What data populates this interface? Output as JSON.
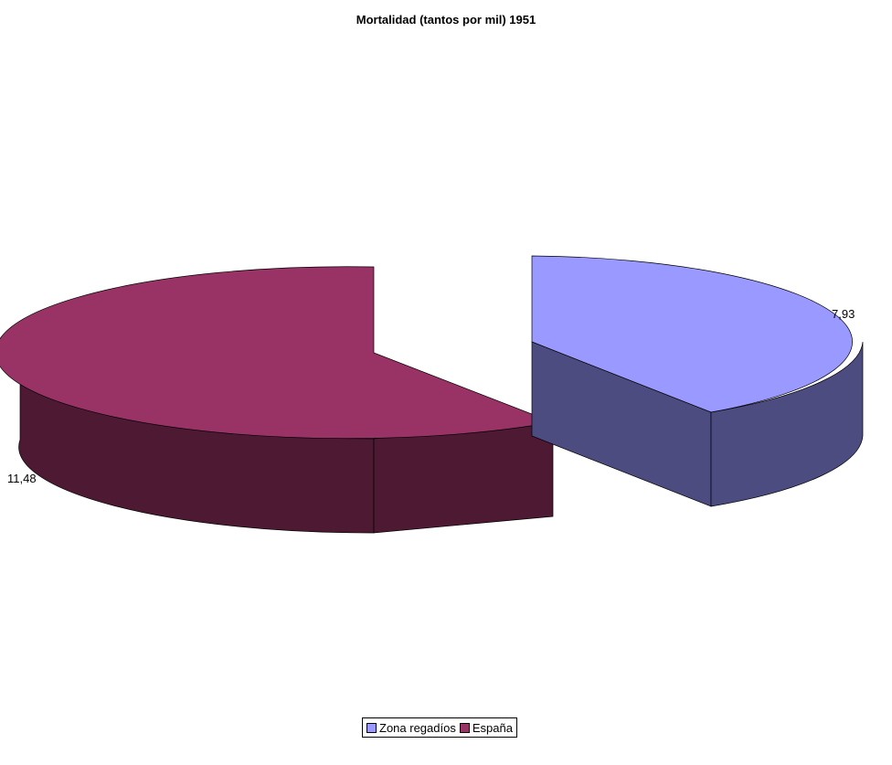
{
  "chart_data": {
    "type": "pie",
    "title": "Mortalidad (tantos por mil) 1951",
    "categories": [
      "Zona regadíos",
      "España"
    ],
    "values": [
      7.93,
      11.48
    ],
    "value_labels": [
      "7,93",
      "11,48"
    ],
    "colors": {
      "Zona regadíos": {
        "top": "#9999ff",
        "side": "#4c4c80"
      },
      "España": {
        "top": "#993366",
        "side": "#4d1933"
      }
    },
    "legend": {
      "position": "bottom",
      "entries": [
        {
          "label": "Zona regadíos",
          "color": "#9999ff"
        },
        {
          "label": "España",
          "color": "#993366"
        }
      ]
    },
    "style": "3d-exploded"
  }
}
